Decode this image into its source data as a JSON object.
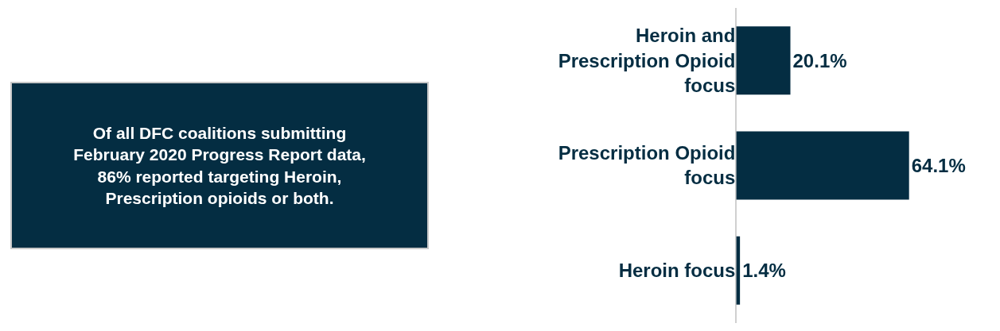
{
  "chart_data": {
    "type": "bar",
    "orientation": "horizontal",
    "categories": [
      "Heroin and Prescription Opioid focus",
      "Prescription Opioid focus",
      "Heroin focus"
    ],
    "values": [
      20.1,
      64.1,
      1.4
    ],
    "value_labels": [
      "20.1%",
      "64.1%",
      "1.4%"
    ],
    "color": "#042d42",
    "annotations": [
      "Of all DFC coalitions submitting February 2020 Progress Report data, 86% reported targeting Heroin, Prescription opioids or both."
    ]
  }
}
